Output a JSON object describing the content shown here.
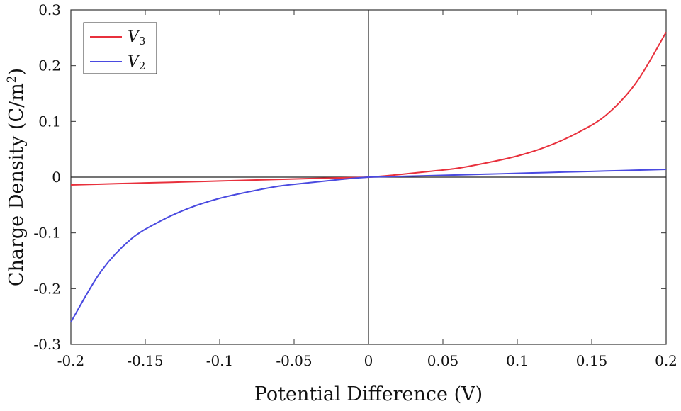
{
  "chart_data": {
    "type": "line",
    "xlabel": "Potential Difference (V)",
    "ylabel": "Charge Density (C/m",
    "ylabel_sup": "2",
    "ylabel_close": ")",
    "xlim": [
      -0.2,
      0.2
    ],
    "ylim": [
      -0.3,
      0.3
    ],
    "xticks": [
      -0.2,
      -0.15,
      -0.1,
      -0.05,
      0,
      0.05,
      0.1,
      0.15,
      0.2
    ],
    "xtick_labels": [
      "-0.2",
      "-0.15",
      "-0.1",
      "-0.05",
      "0",
      "0.05",
      "0.1",
      "0.15",
      "0.2"
    ],
    "yticks": [
      0.3,
      0.2,
      0.1,
      0,
      -0.1,
      -0.2,
      -0.3
    ],
    "ytick_labels": [
      "0.3",
      "0.2",
      "0.1",
      "0",
      "-0.1",
      "-0.2",
      "-0.3"
    ],
    "legend_position": "top-left",
    "grid": false,
    "x": [
      -0.2,
      -0.18,
      -0.16,
      -0.14,
      -0.12,
      -0.1,
      -0.08,
      -0.06,
      -0.04,
      -0.02,
      0,
      0.02,
      0.04,
      0.06,
      0.08,
      0.1,
      0.12,
      0.14,
      0.16,
      0.18,
      0.2
    ],
    "series": [
      {
        "name": "V",
        "subscript": "3",
        "color": "#e8303c",
        "values": [
          -0.014,
          -0.0125,
          -0.0111,
          -0.0097,
          -0.0083,
          -0.0068,
          -0.0054,
          -0.004,
          -0.0026,
          -0.0013,
          0,
          0.0045,
          0.01,
          0.016,
          0.026,
          0.038,
          0.055,
          0.079,
          0.112,
          0.17,
          0.26
        ]
      },
      {
        "name": "V",
        "subscript": "2",
        "color": "#4a4ae0",
        "values": [
          -0.26,
          -0.17,
          -0.112,
          -0.079,
          -0.055,
          -0.038,
          -0.026,
          -0.016,
          -0.01,
          -0.0045,
          0,
          0.0013,
          0.0026,
          0.004,
          0.0054,
          0.0068,
          0.0083,
          0.0097,
          0.0111,
          0.0125,
          0.014
        ]
      }
    ]
  }
}
